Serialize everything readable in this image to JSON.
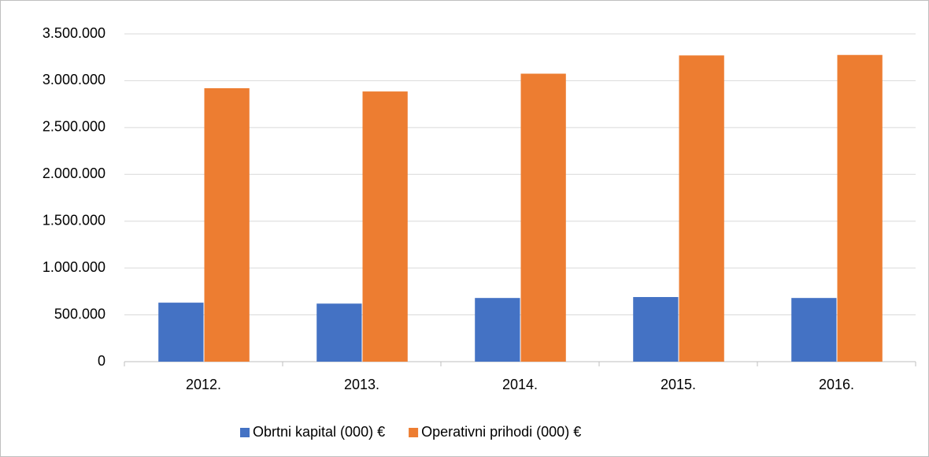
{
  "chart_data": {
    "type": "bar",
    "categories": [
      "2012.",
      "2013.",
      "2014.",
      "2015.",
      "2016."
    ],
    "series": [
      {
        "name": "Obrtni kapital (000) €",
        "color": "#4472c4",
        "values": [
          630000,
          620000,
          680000,
          690000,
          680000
        ]
      },
      {
        "name": "Operativni prihodi (000) €",
        "color": "#ed7d31",
        "values": [
          2920000,
          2885000,
          3075000,
          3270000,
          3275000
        ]
      }
    ],
    "ylim": [
      0,
      3500000
    ],
    "yticks": [
      0,
      {
        "value": 500000,
        "label": "500.000"
      },
      {
        "value": 1000000,
        "label": "1.000.000"
      },
      {
        "value": 1500000,
        "label": "1.500.000"
      },
      {
        "value": 2000000,
        "label": "2.000.000"
      },
      {
        "value": 2500000,
        "label": "2.500.000"
      },
      {
        "value": 3000000,
        "label": "3.000.000"
      },
      {
        "value": 3500000,
        "label": "3.500.000"
      }
    ],
    "grid": true,
    "legend": "bottom"
  }
}
